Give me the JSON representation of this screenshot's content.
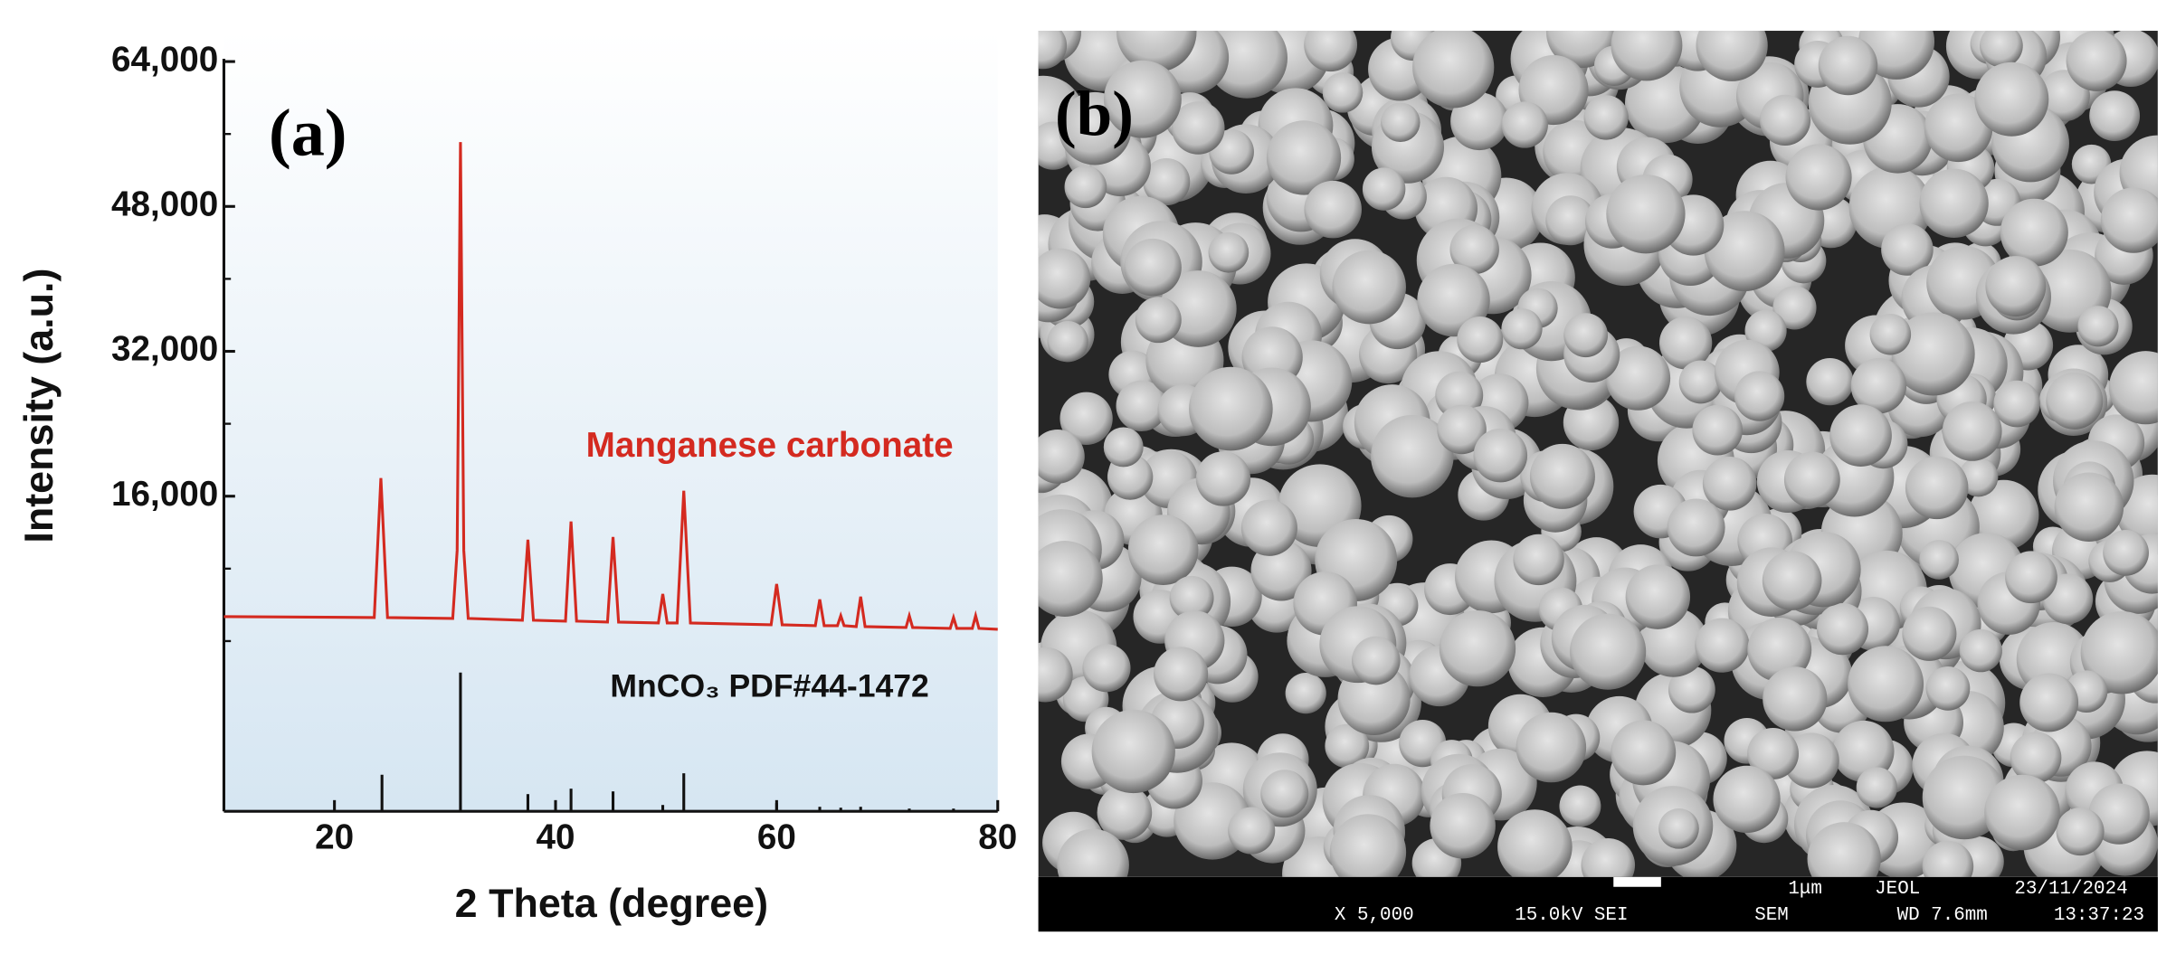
{
  "chart_data": {
    "type": "line",
    "panel_label": "(a)",
    "xlabel": "2 Theta (degree)",
    "ylabel": "Intensity (a.u.)",
    "xlim": [
      10,
      80
    ],
    "xticks": [
      20,
      40,
      60,
      80
    ],
    "ylim": [
      -18800,
      64000
    ],
    "yticks": [
      {
        "value": 16000,
        "label": "16,000"
      },
      {
        "value": 32000,
        "label": "32,000"
      },
      {
        "value": 48000,
        "label": "48,000"
      },
      {
        "value": 64000,
        "label": "64,000"
      }
    ],
    "minor_yticks": [
      0,
      8000,
      24000,
      40000,
      56000
    ],
    "series": [
      {
        "name": "Manganese carbonate",
        "color": "#d42a20",
        "x": [
          10,
          23.6,
          24.2,
          24.8,
          30.7,
          31.1,
          31.4,
          31.7,
          32.1,
          37.0,
          37.5,
          38.0,
          40.9,
          41.4,
          41.9,
          44.7,
          45.2,
          45.7,
          49.3,
          49.7,
          50.1,
          51.0,
          51.6,
          52.2,
          59.5,
          60.0,
          60.5,
          63.5,
          63.9,
          64.3,
          65.5,
          65.8,
          66.1,
          67.2,
          67.6,
          68.0,
          71.7,
          72.0,
          72.3,
          75.7,
          76.0,
          76.3,
          77.7,
          78.0,
          78.3,
          80
        ],
        "values": [
          2700,
          2600,
          18000,
          2600,
          2500,
          10000,
          55100,
          10000,
          2500,
          2300,
          11200,
          2300,
          2200,
          13200,
          2200,
          2100,
          11500,
          2100,
          2000,
          5200,
          2000,
          2000,
          16600,
          2000,
          1800,
          6300,
          1800,
          1700,
          4600,
          1700,
          1700,
          2800,
          1700,
          1600,
          4900,
          1600,
          1500,
          2800,
          1500,
          1400,
          2600,
          1400,
          1400,
          2800,
          1400,
          1300
        ]
      }
    ],
    "reference": {
      "type": "stick",
      "name": "MnCO₃ PDF#44-1472",
      "color": "#111111",
      "x": [
        24.3,
        31.4,
        37.5,
        41.4,
        45.2,
        49.7,
        51.6,
        60.0,
        63.9,
        65.8,
        67.6,
        72.0,
        76.0
      ],
      "values": [
        -14760,
        -3480,
        -16900,
        -16300,
        -16600,
        -18100,
        -14600,
        -17900,
        -18300,
        -18400,
        -18300,
        -18500,
        -18500
      ]
    }
  },
  "sem_image": {
    "panel_label": "(b)",
    "magnification": "X 5,000",
    "voltage": "15.0kV SEI",
    "mode": "SEM",
    "scale": "1μm",
    "maker": "JEOL",
    "date": "23/11/2024",
    "working_distance": "WD 7.6mm",
    "time": "13:37:23"
  }
}
